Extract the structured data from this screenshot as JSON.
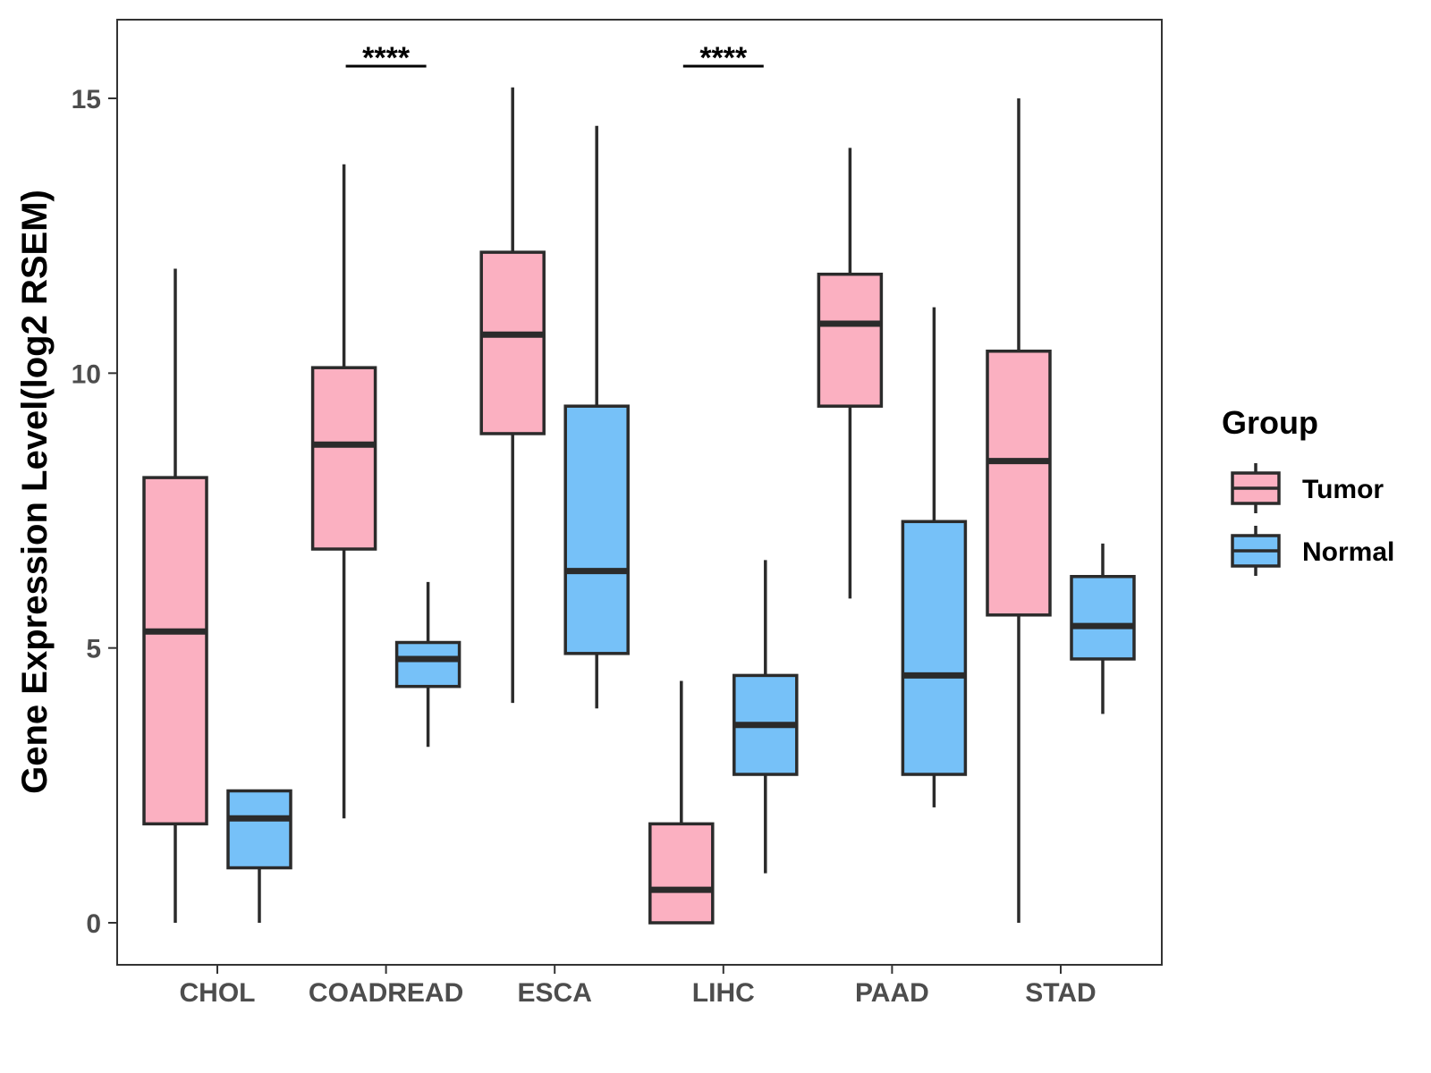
{
  "chart_data": {
    "type": "boxplot",
    "title": "",
    "xlabel": "",
    "ylabel": "Gene Expression Level(log2 RSEM)",
    "ylim": [
      -0.75,
      16.4
    ],
    "yticks": [
      0,
      5,
      10,
      15
    ],
    "ytick_labels": [
      "0",
      "5",
      "10",
      "15"
    ],
    "grid": false,
    "categories": [
      "CHOL",
      "COADREAD",
      "ESCA",
      "LIHC",
      "PAAD",
      "STAD"
    ],
    "legend": {
      "title": "Group",
      "position": "right",
      "entries": [
        {
          "name": "Tumor",
          "color": "#fbb0c1"
        },
        {
          "name": "Normal",
          "color": "#76c1f8"
        }
      ]
    },
    "series": [
      {
        "name": "Tumor",
        "color": "#fbb0c1",
        "boxes": [
          {
            "min": 0.0,
            "q1": 1.8,
            "median": 5.3,
            "q3": 8.1,
            "max": 11.9
          },
          {
            "min": 1.9,
            "q1": 6.8,
            "median": 8.7,
            "q3": 10.1,
            "max": 13.8
          },
          {
            "min": 4.0,
            "q1": 8.9,
            "median": 10.7,
            "q3": 12.2,
            "max": 15.2
          },
          {
            "min": 0.0,
            "q1": 0.0,
            "median": 0.6,
            "q3": 1.8,
            "max": 4.4
          },
          {
            "min": 5.9,
            "q1": 9.4,
            "median": 10.9,
            "q3": 11.8,
            "max": 14.1
          },
          {
            "min": 0.0,
            "q1": 5.6,
            "median": 8.4,
            "q3": 10.4,
            "max": 15.0
          }
        ]
      },
      {
        "name": "Normal",
        "color": "#76c1f8",
        "boxes": [
          {
            "min": 0.0,
            "q1": 1.0,
            "median": 1.9,
            "q3": 2.4,
            "max": 2.4
          },
          {
            "min": 3.2,
            "q1": 4.3,
            "median": 4.8,
            "q3": 5.1,
            "max": 6.2
          },
          {
            "min": 3.9,
            "q1": 4.9,
            "median": 6.4,
            "q3": 9.4,
            "max": 14.5
          },
          {
            "min": 0.9,
            "q1": 2.7,
            "median": 3.6,
            "q3": 4.5,
            "max": 6.6
          },
          {
            "min": 2.1,
            "q1": 2.7,
            "median": 4.5,
            "q3": 7.3,
            "max": 11.2
          },
          {
            "min": 3.8,
            "q1": 4.8,
            "median": 5.4,
            "q3": 6.3,
            "max": 6.9
          }
        ]
      }
    ],
    "annotations": [
      {
        "category": "COADREAD",
        "text": "****"
      },
      {
        "category": "LIHC",
        "text": "****"
      }
    ]
  }
}
